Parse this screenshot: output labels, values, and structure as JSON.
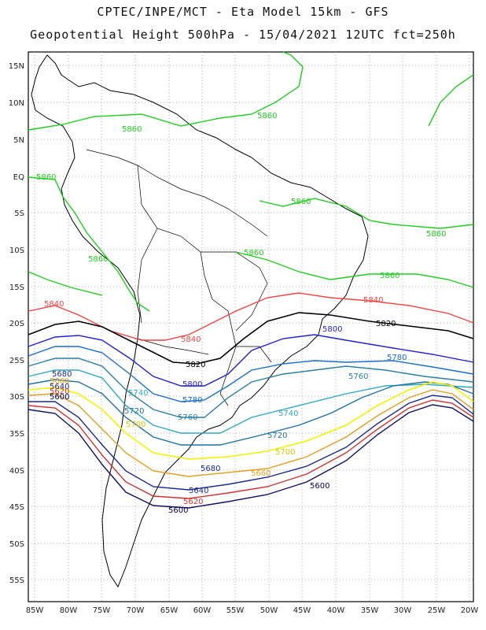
{
  "title_line1": "CPTEC/INPE/MCT -  Eta Model 15km - GFS",
  "title_line2": "Geopotential Height 500hPa - 15/04/2021 12UTC fct=250h",
  "lat_labels": [
    "15N",
    "10N",
    "5N",
    "EQ",
    "5S",
    "10S",
    "15S",
    "20S",
    "25S",
    "30S",
    "35S",
    "40S",
    "45S",
    "50S",
    "55S"
  ],
  "lon_labels": [
    "85W",
    "80W",
    "75W",
    "70W",
    "65W",
    "60W",
    "55W",
    "50W",
    "45W",
    "40W",
    "35W",
    "30W",
    "25W",
    "20W"
  ],
  "contour_labels": {
    "c5860": "5860",
    "c5840": "5840",
    "c5820": "5820",
    "c5800": "5800",
    "c5780": "5780",
    "c5760": "5760",
    "c5740": "5740",
    "c5720": "5720",
    "c5700": "5700",
    "c5680": "5680",
    "c5660": "5660",
    "c5640": "5640",
    "c5620": "5620",
    "c5600": "5600"
  },
  "colors": {
    "c5860": "#22cc22",
    "c5840": "#ee4444",
    "c5820": "#000000",
    "c5800": "#2222cc",
    "c5780": "#1a6ec8",
    "c5760": "#2a7f9f",
    "c5740": "#30a8c0",
    "c5720": "#2070a0",
    "c5700": "#f2f200",
    "c5680": "#e0a020",
    "c5660": "#1a2a8a",
    "c5640": "#cc3333",
    "c5620": "#101060",
    "c5600": "#000055"
  }
}
